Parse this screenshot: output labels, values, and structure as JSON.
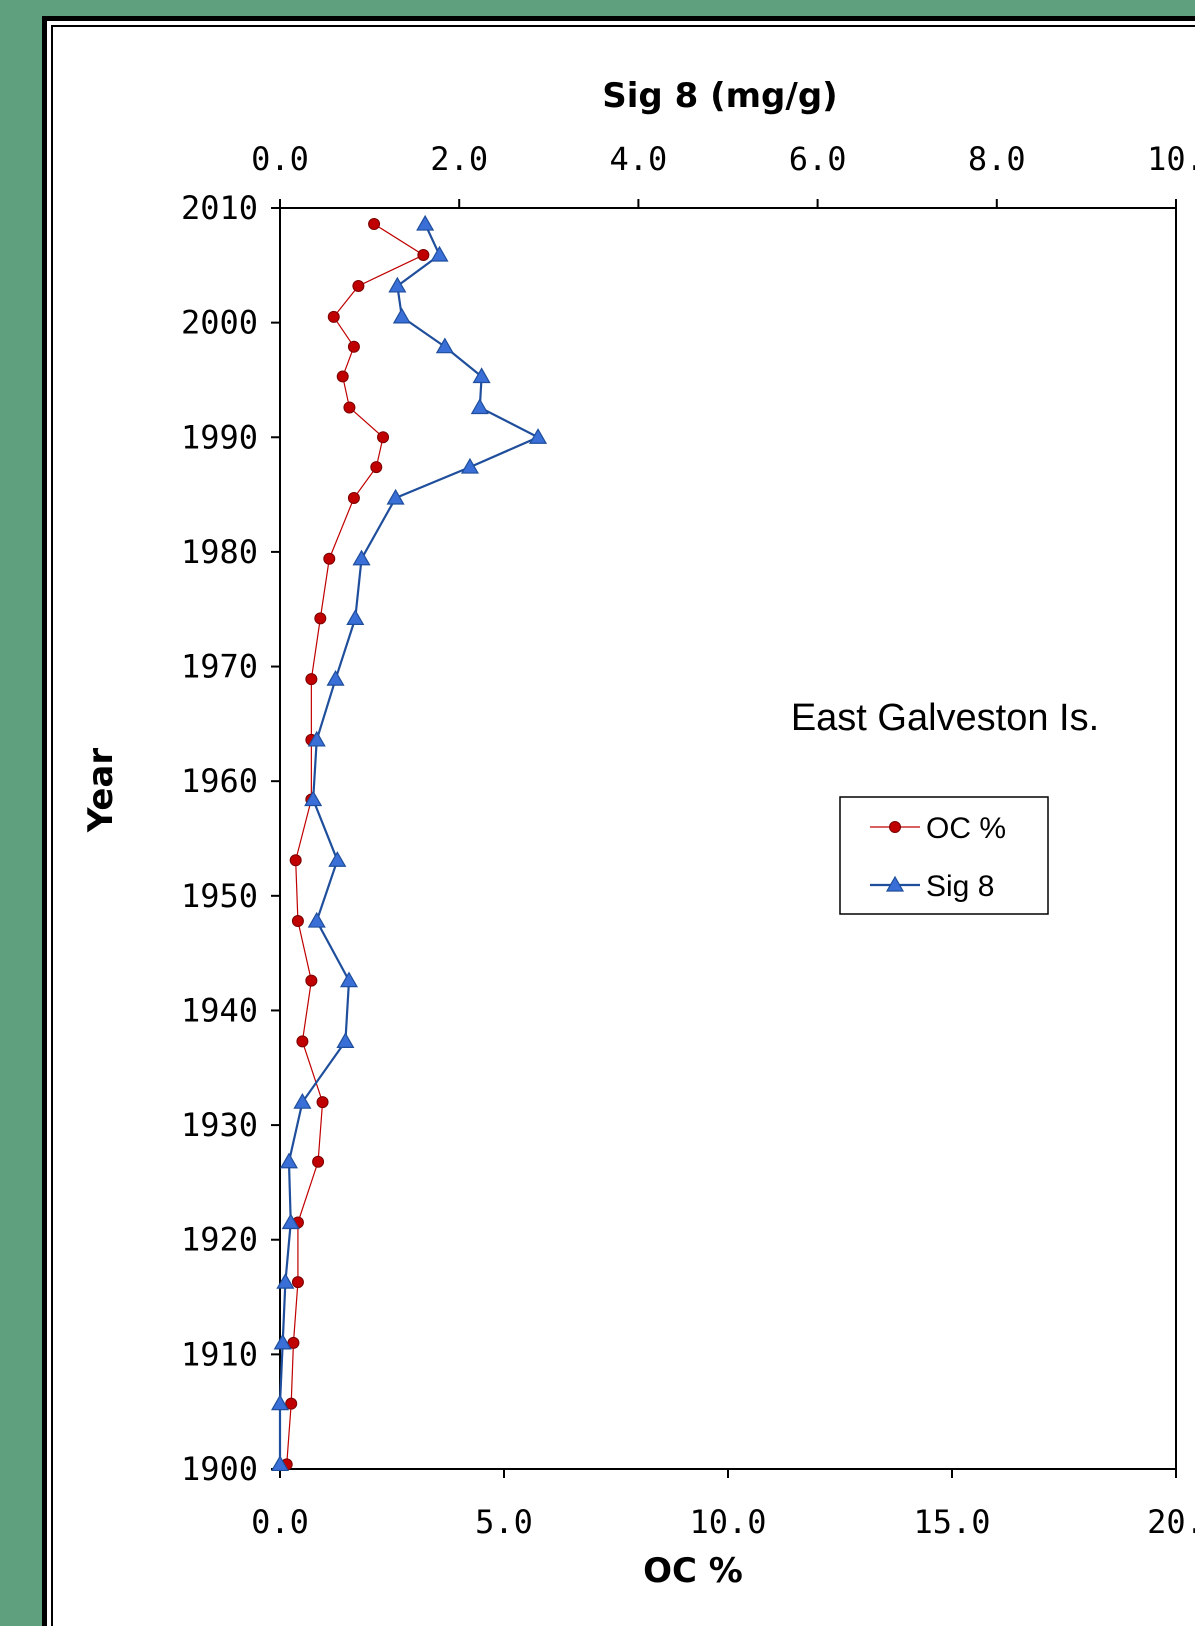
{
  "chart_data": {
    "type": "line",
    "title": "",
    "top_axis_label": "Sig 8 (mg/g)",
    "bottom_axis_label": "OC %",
    "ylabel": "Year",
    "annotation": "East Galveston Is.",
    "top_ticks": [
      "0.0",
      "2.0",
      "4.0",
      "6.0",
      "8.0",
      "10."
    ],
    "bottom_ticks": [
      "0.0",
      "5.0",
      "10.0",
      "15.0",
      "20."
    ],
    "y_ticks": [
      "2010",
      "2000",
      "1990",
      "1980",
      "1970",
      "1960",
      "1950",
      "1940",
      "1930",
      "1920",
      "1910",
      "1900"
    ],
    "top_xlim": [
      0,
      10
    ],
    "bottom_xlim": [
      0,
      20
    ],
    "ylim": [
      1900,
      2010
    ],
    "grid": false,
    "legend_position": "right",
    "series": [
      {
        "name": "OC %",
        "axis": "bottom",
        "color": "#c00000",
        "marker": "circle",
        "x": [
          2.1,
          3.2,
          1.75,
          1.2,
          1.65,
          1.4,
          1.55,
          2.3,
          2.15,
          1.65,
          1.1,
          0.9,
          0.7,
          0.7,
          0.7,
          0.35,
          0.4,
          0.7,
          0.5,
          0.95,
          0.85,
          0.4,
          0.4,
          0.3,
          0.25,
          0.15
        ],
        "y": [
          2008.6,
          2005.9,
          2003.2,
          2000.5,
          1997.9,
          1995.3,
          1992.6,
          1990.0,
          1987.4,
          1984.7,
          1979.4,
          1974.2,
          1968.9,
          1963.6,
          1958.4,
          1953.1,
          1947.8,
          1942.6,
          1937.3,
          1932.0,
          1926.8,
          1921.5,
          1916.3,
          1911.0,
          1905.7,
          1900.4
        ]
      },
      {
        "name": "Sig 8",
        "axis": "top",
        "color": "#1f4e9c",
        "marker": "triangle",
        "x": [
          1.62,
          1.78,
          1.31,
          1.36,
          1.84,
          2.25,
          2.23,
          2.88,
          2.12,
          1.29,
          0.91,
          0.84,
          0.62,
          0.41,
          0.37,
          0.64,
          0.41,
          0.77,
          0.73,
          0.25,
          0.1,
          0.12,
          0.06,
          0.03,
          0.0,
          0.0
        ],
        "y": [
          2008.6,
          2005.9,
          2003.2,
          2000.5,
          1997.9,
          1995.3,
          1992.6,
          1990.0,
          1987.4,
          1984.7,
          1979.4,
          1974.2,
          1968.9,
          1963.6,
          1958.4,
          1953.1,
          1947.8,
          1942.6,
          1937.3,
          1932.0,
          1926.8,
          1921.5,
          1916.3,
          1911.0,
          1905.7,
          1900.4
        ]
      }
    ]
  }
}
